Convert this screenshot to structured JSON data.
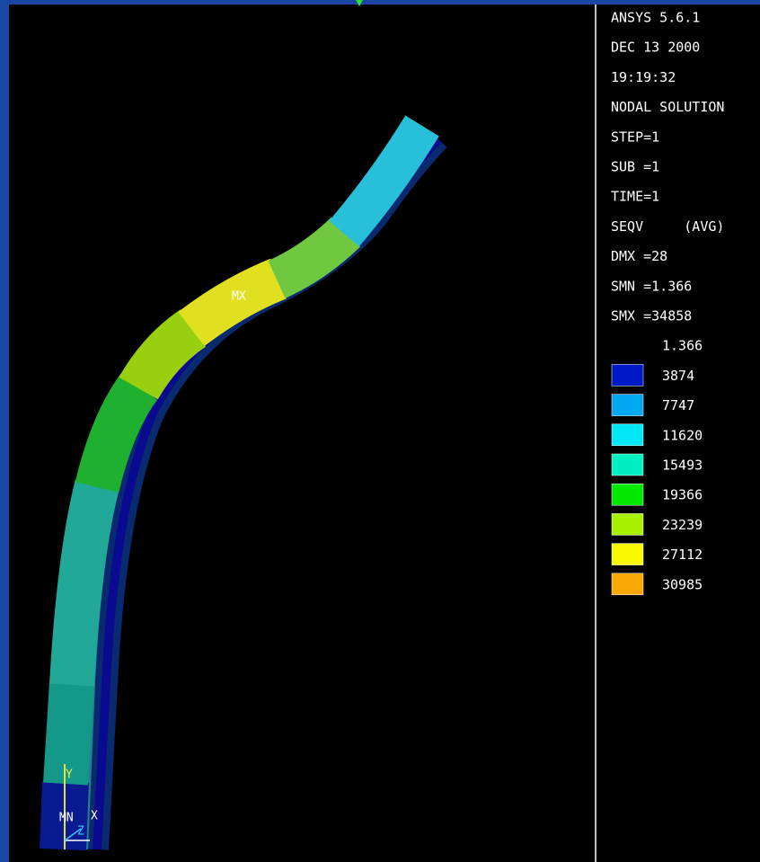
{
  "header": {
    "lines": [
      "ANSYS 5.6.1",
      "DEC 13 2000",
      "19:19:32",
      "NODAL SOLUTION",
      "STEP=1",
      "SUB =1",
      "TIME=1",
      "SEQV     (AVG)",
      "DMX =28",
      "SMN =1.366",
      "SMX =34858"
    ]
  },
  "legend": {
    "min_label": "1.366",
    "entries": [
      {
        "label": "3874",
        "color": "#0018c8"
      },
      {
        "label": "7747",
        "color": "#00a8f0"
      },
      {
        "label": "11620",
        "color": "#00e8f8"
      },
      {
        "label": "15493",
        "color": "#00f0c0"
      },
      {
        "label": "19366",
        "color": "#00e800"
      },
      {
        "label": "23239",
        "color": "#a8f000"
      },
      {
        "label": "27112",
        "color": "#f8f800"
      },
      {
        "label": "30985",
        "color": "#f8a800"
      }
    ]
  },
  "model_labels": {
    "max": "MX",
    "y_axis": "Y",
    "min": "MN",
    "x_axis": "X",
    "z_axis": "Z"
  }
}
